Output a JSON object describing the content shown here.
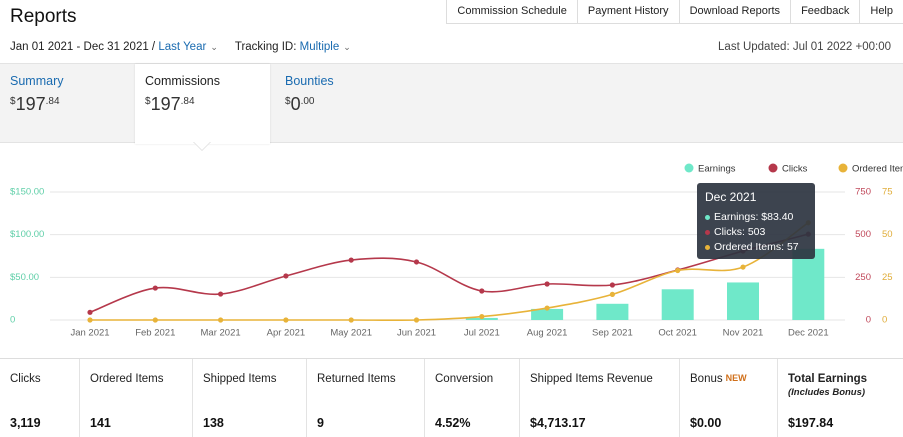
{
  "header": {
    "title": "Reports",
    "nav": [
      "Commission Schedule",
      "Payment History",
      "Download Reports",
      "Feedback",
      "Help"
    ],
    "date_range": "Jan 01 2021 - Dec 31 2021 /",
    "range_preset": "Last Year",
    "tracking_label": "Tracking ID:",
    "tracking_value": "Multiple",
    "last_updated": "Last Updated: Jul 01 2022 +00:00"
  },
  "tabs": [
    {
      "label": "Summary",
      "currency": "$",
      "whole": "197",
      "fraction": ".84"
    },
    {
      "label": "Commissions",
      "currency": "$",
      "whole": "197",
      "fraction": ".84"
    },
    {
      "label": "Bounties",
      "currency": "$",
      "whole": "0",
      "fraction": ".00"
    }
  ],
  "chart_data": {
    "type": "combo",
    "categories": [
      "Jan 2021",
      "Feb 2021",
      "Mar 2021",
      "Apr 2021",
      "May 2021",
      "Jun 2021",
      "Jul 2021",
      "Aug 2021",
      "Sep 2021",
      "Oct 2021",
      "Nov 2021",
      "Dec 2021"
    ],
    "series": [
      {
        "name": "Earnings",
        "type": "bar",
        "axis": "y",
        "color": "#6fe8c9",
        "values": [
          0,
          0,
          0,
          0,
          0,
          0,
          2.44,
          13,
          19,
          36,
          44,
          83.4
        ]
      },
      {
        "name": "Clicks",
        "type": "line",
        "axis": "y2",
        "color": "#b5384b",
        "values": [
          45,
          187,
          152,
          258,
          351,
          340,
          170,
          211,
          205,
          293,
          404,
          503
        ]
      },
      {
        "name": "Ordered Items",
        "type": "line",
        "axis": "y3",
        "color": "#e8b339",
        "values": [
          0,
          0,
          0,
          0,
          0,
          0,
          2,
          7,
          15,
          29,
          31,
          57
        ]
      }
    ],
    "ylim": [
      0,
      150
    ],
    "yticks": [
      0,
      {
        "value": 50,
        "label": "$50.00"
      },
      {
        "value": 100,
        "label": "$100.00"
      },
      {
        "value": 150,
        "label": "$150.00"
      }
    ],
    "y2lim": [
      0,
      750
    ],
    "y2ticks": [
      0,
      250,
      500,
      750
    ],
    "y3lim": [
      0,
      75
    ],
    "y3ticks": [
      0,
      25,
      50,
      75
    ],
    "grid": true,
    "legend": "top-right",
    "tooltip": {
      "title": "Dec 2021",
      "rows": [
        "Earnings: $83.40",
        "Clicks: 503",
        "Ordered Items: 57"
      ]
    }
  },
  "stats": [
    {
      "label": "Clicks",
      "value": "3,119"
    },
    {
      "label": "Ordered Items",
      "value": "141"
    },
    {
      "label": "Shipped Items",
      "value": "138"
    },
    {
      "label": "Returned Items",
      "value": "9"
    },
    {
      "label": "Conversion",
      "value": "4.52%"
    },
    {
      "label": "Shipped Items Revenue",
      "value": "$4,713.17"
    },
    {
      "label": "Bonus",
      "badge": "NEW",
      "value": "$0.00"
    },
    {
      "label": "Total Earnings",
      "note": "(Includes Bonus)",
      "value": "$197.84"
    }
  ]
}
